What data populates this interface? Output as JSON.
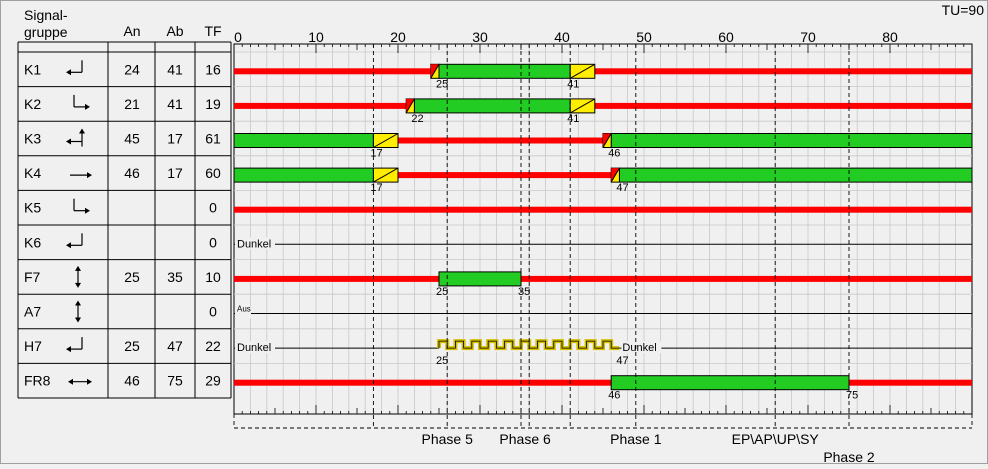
{
  "header": {
    "title_line1": "Signal-",
    "title_line2": "gruppe",
    "col_an": "An",
    "col_ab": "Ab",
    "col_tf": "TF",
    "cycle_label": "TU=90"
  },
  "timeline": {
    "cycle": 90,
    "ticks": [
      0,
      10,
      20,
      30,
      40,
      50,
      60,
      70,
      80
    ]
  },
  "colors": {
    "red": "#ff0000",
    "green": "#22cc22",
    "yellow": "#ffee00",
    "background": "#f0f0f0",
    "grid": "#c8c8c8"
  },
  "rows": [
    {
      "name": "K1",
      "arrow": "left-turn",
      "an": "24",
      "ab": "41",
      "tf": "16",
      "state": "red",
      "greens": [
        [
          25,
          41
        ]
      ],
      "redyellow": [
        [
          24,
          25
        ]
      ],
      "yellows": [
        [
          41,
          44
        ]
      ],
      "labels": [
        {
          "t": 25,
          "text": "25"
        },
        {
          "t": 41,
          "text": "41"
        }
      ]
    },
    {
      "name": "K2",
      "arrow": "right-turn",
      "an": "21",
      "ab": "41",
      "tf": "19",
      "state": "red",
      "greens": [
        [
          22,
          41
        ]
      ],
      "redyellow": [
        [
          21,
          22
        ]
      ],
      "yellows": [
        [
          41,
          44
        ]
      ],
      "labels": [
        {
          "t": 22,
          "text": "22"
        },
        {
          "t": 41,
          "text": "41"
        }
      ]
    },
    {
      "name": "K3",
      "arrow": "straight-left",
      "an": "45",
      "ab": "17",
      "tf": "61",
      "state": "red",
      "greens": [
        [
          0,
          17
        ],
        [
          46,
          90
        ]
      ],
      "redyellow": [
        [
          45,
          46
        ]
      ],
      "yellows": [
        [
          17,
          20
        ]
      ],
      "labels": [
        {
          "t": 17,
          "text": "17"
        },
        {
          "t": 46,
          "text": "46"
        }
      ]
    },
    {
      "name": "K4",
      "arrow": "straight",
      "an": "46",
      "ab": "17",
      "tf": "60",
      "state": "red",
      "greens": [
        [
          0,
          17
        ],
        [
          47,
          90
        ]
      ],
      "redyellow": [
        [
          46,
          47
        ]
      ],
      "yellows": [
        [
          17,
          20
        ]
      ],
      "labels": [
        {
          "t": 17,
          "text": "17"
        },
        {
          "t": 47,
          "text": "47"
        }
      ]
    },
    {
      "name": "K5",
      "arrow": "right-turn",
      "an": "",
      "ab": "",
      "tf": "0",
      "state": "red",
      "greens": [],
      "redyellow": [],
      "yellows": [],
      "labels": []
    },
    {
      "name": "K6",
      "arrow": "left-turn",
      "an": "",
      "ab": "",
      "tf": "0",
      "state": "dark",
      "stateLabel": "Dunkel",
      "greens": [],
      "redyellow": [],
      "yellows": [],
      "labels": []
    },
    {
      "name": "F7",
      "arrow": "ped-updown",
      "an": "25",
      "ab": "35",
      "tf": "10",
      "state": "red",
      "greens": [
        [
          25,
          35
        ]
      ],
      "redyellow": [],
      "yellows": [],
      "labels": [
        {
          "t": 25,
          "text": "25"
        },
        {
          "t": 35,
          "text": "35"
        }
      ]
    },
    {
      "name": "A7",
      "arrow": "ped-updown",
      "an": "",
      "ab": "",
      "tf": "0",
      "state": "off",
      "stateLabel": "Aus",
      "greens": [],
      "redyellow": [],
      "yellows": [],
      "labels": []
    },
    {
      "name": "H7",
      "arrow": "left-turn",
      "an": "25",
      "ab": "47",
      "tf": "22",
      "state": "dark",
      "stateLabel": "Dunkel",
      "greens": [],
      "redyellow": [],
      "yellows": [],
      "blink": [
        [
          25,
          47
        ]
      ],
      "afterLabel": "Dunkel",
      "labels": [
        {
          "t": 25,
          "text": "25"
        },
        {
          "t": 47,
          "text": "47"
        }
      ]
    },
    {
      "name": "FR8",
      "arrow": "both-horizontal",
      "an": "46",
      "ab": "75",
      "tf": "29",
      "state": "red",
      "greens": [
        [
          46,
          75
        ]
      ],
      "redyellow": [],
      "yellows": [],
      "labels": [
        {
          "t": 46,
          "text": "46"
        },
        {
          "t": 75,
          "text": "75"
        }
      ]
    }
  ],
  "phase_boundaries": [
    17,
    26,
    35,
    36,
    41,
    49,
    66,
    75
  ],
  "phases": [
    {
      "label": "Phase 5",
      "from": 17,
      "to": 26,
      "t": 26,
      "level": 1
    },
    {
      "label": "Phase 6",
      "from": 35,
      "to": 36,
      "t": 35.5,
      "level": 1
    },
    {
      "label": "Phase 1",
      "from": 41,
      "to": 49,
      "t": 49,
      "level": 1
    },
    {
      "label": "EP\\AP\\UP\\SY",
      "from": 49,
      "to": 66,
      "t": 66,
      "level": 1
    },
    {
      "label": "Phase 2",
      "from": 66,
      "to": 75,
      "t": 75,
      "level": 2
    }
  ]
}
